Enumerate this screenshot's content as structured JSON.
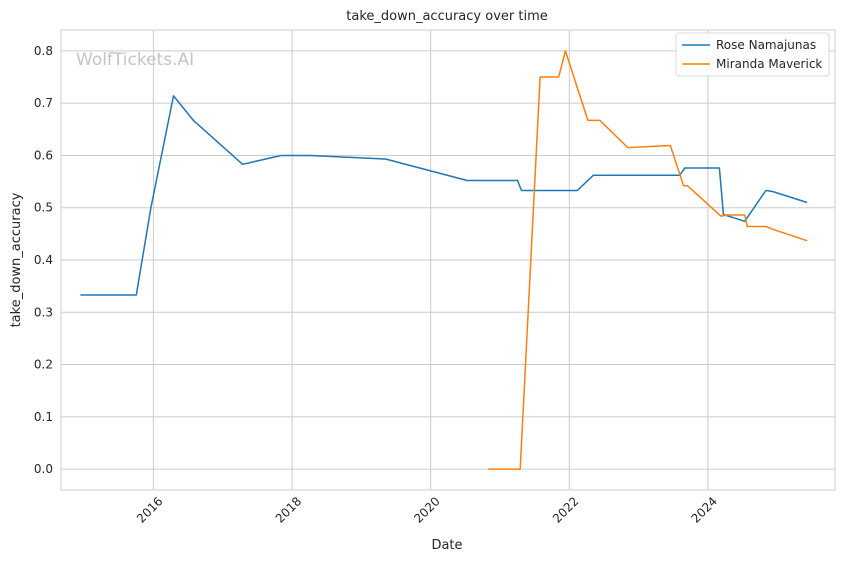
{
  "chart_data": {
    "type": "line",
    "title": "take_down_accuracy over time",
    "xlabel": "Date",
    "ylabel": "take_down_accuracy",
    "watermark": "WolfTickets.AI",
    "x_ticks": [
      "2016",
      "2018",
      "2020",
      "2022",
      "2024"
    ],
    "y_ticks": [
      "0.0",
      "0.1",
      "0.2",
      "0.3",
      "0.4",
      "0.5",
      "0.6",
      "0.7",
      "0.8"
    ],
    "xlim": [
      "2014-09-01",
      "2025-11-01"
    ],
    "ylim": [
      -0.04,
      0.84
    ],
    "grid": true,
    "legend_position": "top-right",
    "series": [
      {
        "name": "Rose Namajunas",
        "color": "#1f77b4",
        "points": [
          [
            "2014-12-12",
            0.333
          ],
          [
            "2015-10-03",
            0.333
          ],
          [
            "2015-12-19",
            0.5
          ],
          [
            "2016-04-16",
            0.714
          ],
          [
            "2016-07-30",
            0.667
          ],
          [
            "2017-04-15",
            0.583
          ],
          [
            "2017-11-04",
            0.6
          ],
          [
            "2018-04-07",
            0.6
          ],
          [
            "2019-05-11",
            0.593
          ],
          [
            "2020-07-11",
            0.552
          ],
          [
            "2021-04-03",
            0.552
          ],
          [
            "2021-04-24",
            0.533
          ],
          [
            "2022-02-12",
            0.533
          ],
          [
            "2022-05-07",
            0.562
          ],
          [
            "2023-08-05",
            0.562
          ],
          [
            "2023-09-02",
            0.576
          ],
          [
            "2024-03-02",
            0.576
          ],
          [
            "2024-03-23",
            0.487
          ],
          [
            "2024-07-13",
            0.474
          ],
          [
            "2024-11-02",
            0.533
          ],
          [
            "2024-12-07",
            0.531
          ],
          [
            "2025-06-07",
            0.51
          ]
        ]
      },
      {
        "name": "Miranda Maverick",
        "color": "#ff7f0e",
        "points": [
          [
            "2020-10-31",
            0.0
          ],
          [
            "2021-04-17",
            0.0
          ],
          [
            "2021-07-31",
            0.75
          ],
          [
            "2021-11-06",
            0.75
          ],
          [
            "2021-12-11",
            0.8
          ],
          [
            "2022-04-09",
            0.667
          ],
          [
            "2022-06-11",
            0.667
          ],
          [
            "2022-11-05",
            0.615
          ],
          [
            "2023-06-17",
            0.619
          ],
          [
            "2023-08-26",
            0.542
          ],
          [
            "2023-09-16",
            0.542
          ],
          [
            "2024-03-09",
            0.484
          ],
          [
            "2024-04-13",
            0.486
          ],
          [
            "2024-07-13",
            0.486
          ],
          [
            "2024-07-27",
            0.464
          ],
          [
            "2024-11-02",
            0.464
          ],
          [
            "2024-12-14",
            0.458
          ],
          [
            "2025-06-07",
            0.437
          ]
        ]
      }
    ]
  }
}
